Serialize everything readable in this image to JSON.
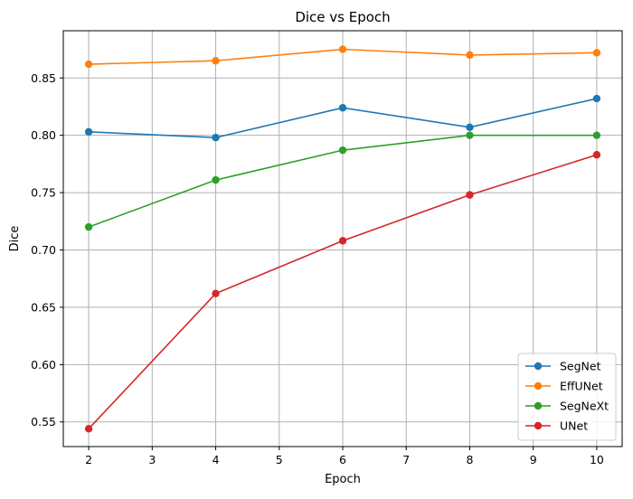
{
  "chart_data": {
    "type": "line",
    "title": "Dice vs Epoch",
    "xlabel": "Epoch",
    "ylabel": "Dice",
    "x": [
      2,
      4,
      6,
      8,
      10
    ],
    "xlim": [
      1.6,
      10.4
    ],
    "ylim": [
      0.5285,
      0.8912
    ],
    "xticks": [
      2,
      3,
      4,
      5,
      6,
      7,
      8,
      9,
      10
    ],
    "yticks": [
      0.55,
      0.6,
      0.65,
      0.7,
      0.75,
      0.8,
      0.85
    ],
    "ytick_labels": [
      "0.55",
      "0.60",
      "0.65",
      "0.70",
      "0.75",
      "0.80",
      "0.85"
    ],
    "grid": true,
    "legend_position": "lower-right",
    "series": [
      {
        "name": "SegNet",
        "color": "#1f77b4",
        "values": [
          0.803,
          0.798,
          0.824,
          0.807,
          0.832
        ]
      },
      {
        "name": "EffUNet",
        "color": "#ff7f0e",
        "values": [
          0.862,
          0.865,
          0.875,
          0.87,
          0.872
        ]
      },
      {
        "name": "SegNeXt",
        "color": "#2ca02c",
        "values": [
          0.72,
          0.761,
          0.787,
          0.8,
          0.8
        ]
      },
      {
        "name": "UNet",
        "color": "#d62728",
        "values": [
          0.544,
          0.662,
          0.708,
          0.748,
          0.783
        ]
      }
    ]
  }
}
